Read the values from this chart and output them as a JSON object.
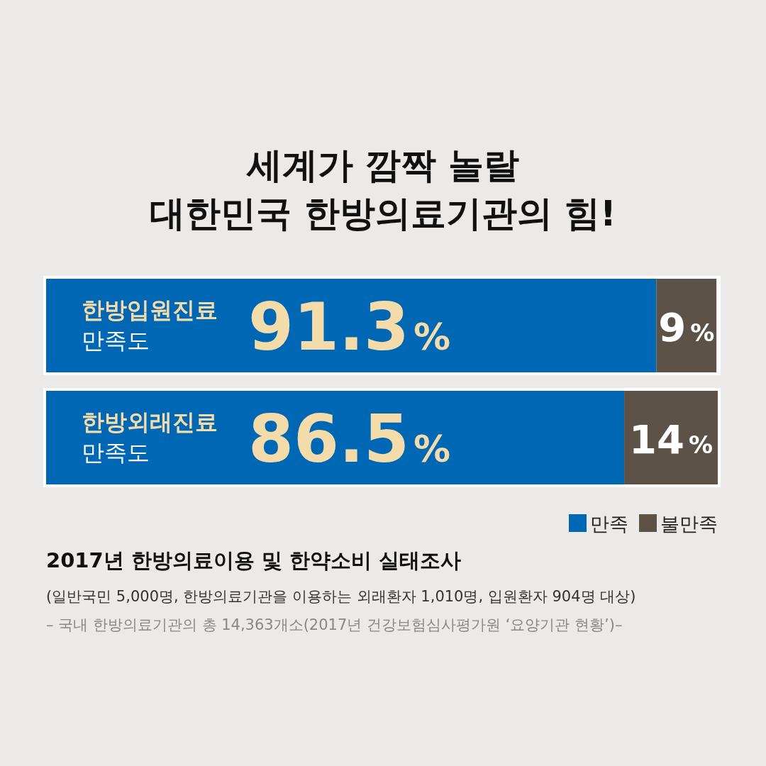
{
  "chart_data": {
    "type": "bar",
    "orientation": "horizontal",
    "stacked": true,
    "title": "세계가 깜짝 놀랄\n대한민국 한방의료기관의 힘!",
    "categories": [
      "한방입원진료 만족도",
      "한방외래진료 만족도"
    ],
    "series": [
      {
        "name": "만족",
        "color": "#0067b5",
        "values": [
          91.3,
          86.5
        ],
        "value_labels": [
          "91.3%",
          "86.5%"
        ]
      },
      {
        "name": "불만족",
        "color": "#5c5248",
        "values": [
          9,
          14
        ],
        "value_labels": [
          "9%",
          "14%"
        ]
      }
    ],
    "legend": "bottom right",
    "annotations": [
      "2017년 한방의료이용 및 한약소비 실태조사",
      "(일반국민 5,000명, 한방의료기관을 이용하는 외래환자 1,010명, 입원환자 904명 대상)",
      "– 국내 한방의료기관의 총 14,363개소(2017년 건강보험심사평가원 ‘요양기관 현황’)–"
    ]
  }
}
